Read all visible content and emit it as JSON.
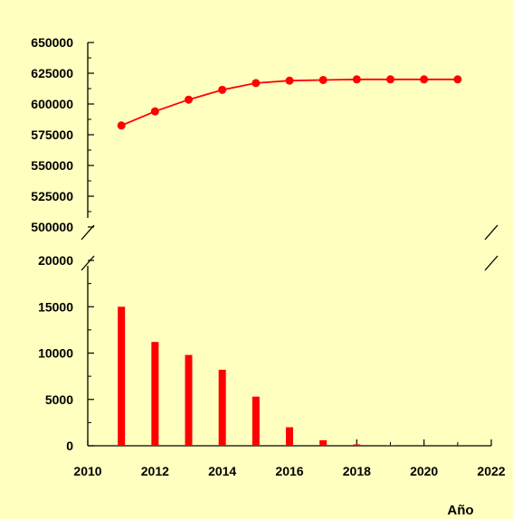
{
  "chart_data": {
    "type": "bar",
    "xlabel": "Año",
    "x_axis": {
      "range": [
        2010,
        2022
      ],
      "ticks": [
        2010,
        2012,
        2014,
        2016,
        2018,
        2020,
        2022
      ]
    },
    "grid": false,
    "legend": "none",
    "colors": {
      "series": "#FF0000",
      "background": "#FFFFC0",
      "axis": "#000000"
    },
    "panels": [
      {
        "name": "upper",
        "type": "line",
        "ylim": [
          500000,
          650000
        ],
        "y_ticks": [
          500000,
          525000,
          550000,
          575000,
          600000,
          625000,
          650000
        ],
        "x": [
          2011,
          2012,
          2013,
          2014,
          2015,
          2016,
          2017,
          2018,
          2019,
          2020,
          2021
        ],
        "values": [
          582500,
          594000,
          603500,
          611500,
          617000,
          619000,
          619500,
          620000,
          620000,
          620000,
          620000
        ]
      },
      {
        "name": "lower",
        "type": "bar",
        "ylim": [
          0,
          20000
        ],
        "y_ticks": [
          0,
          5000,
          10000,
          15000,
          20000
        ],
        "x": [
          2011,
          2012,
          2013,
          2014,
          2015,
          2016,
          2017,
          2018,
          2019,
          2020,
          2021
        ],
        "values": [
          15000,
          11200,
          9800,
          8200,
          5300,
          2000,
          600,
          150,
          30,
          10,
          5
        ]
      }
    ]
  }
}
